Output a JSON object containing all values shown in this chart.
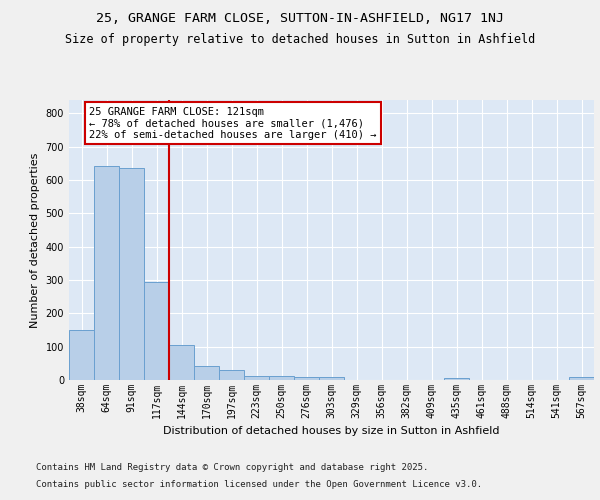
{
  "title1": "25, GRANGE FARM CLOSE, SUTTON-IN-ASHFIELD, NG17 1NJ",
  "title2": "Size of property relative to detached houses in Sutton in Ashfield",
  "xlabel": "Distribution of detached houses by size in Sutton in Ashfield",
  "ylabel": "Number of detached properties",
  "categories": [
    "38sqm",
    "64sqm",
    "91sqm",
    "117sqm",
    "144sqm",
    "170sqm",
    "197sqm",
    "223sqm",
    "250sqm",
    "276sqm",
    "303sqm",
    "329sqm",
    "356sqm",
    "382sqm",
    "409sqm",
    "435sqm",
    "461sqm",
    "488sqm",
    "514sqm",
    "541sqm",
    "567sqm"
  ],
  "values": [
    150,
    643,
    635,
    295,
    105,
    42,
    30,
    12,
    12,
    10,
    10,
    0,
    0,
    0,
    0,
    5,
    0,
    0,
    0,
    0,
    8
  ],
  "bar_color": "#b8cfe8",
  "bar_edge_color": "#6aa0d0",
  "background_color": "#dde8f5",
  "grid_color": "#ffffff",
  "annotation_box_text": "25 GRANGE FARM CLOSE: 121sqm\n← 78% of detached houses are smaller (1,476)\n22% of semi-detached houses are larger (410) →",
  "annotation_box_color": "#ffffff",
  "annotation_box_edge": "#cc0000",
  "vline_x": 3.5,
  "vline_color": "#cc0000",
  "ylim": [
    0,
    840
  ],
  "yticks": [
    0,
    100,
    200,
    300,
    400,
    500,
    600,
    700,
    800
  ],
  "footer1": "Contains HM Land Registry data © Crown copyright and database right 2025.",
  "footer2": "Contains public sector information licensed under the Open Government Licence v3.0.",
  "fig_bg": "#f0f0f0",
  "title_fontsize": 9.5,
  "subtitle_fontsize": 8.5,
  "tick_fontsize": 7,
  "label_fontsize": 8,
  "footer_fontsize": 6.5,
  "annot_fontsize": 7.5
}
